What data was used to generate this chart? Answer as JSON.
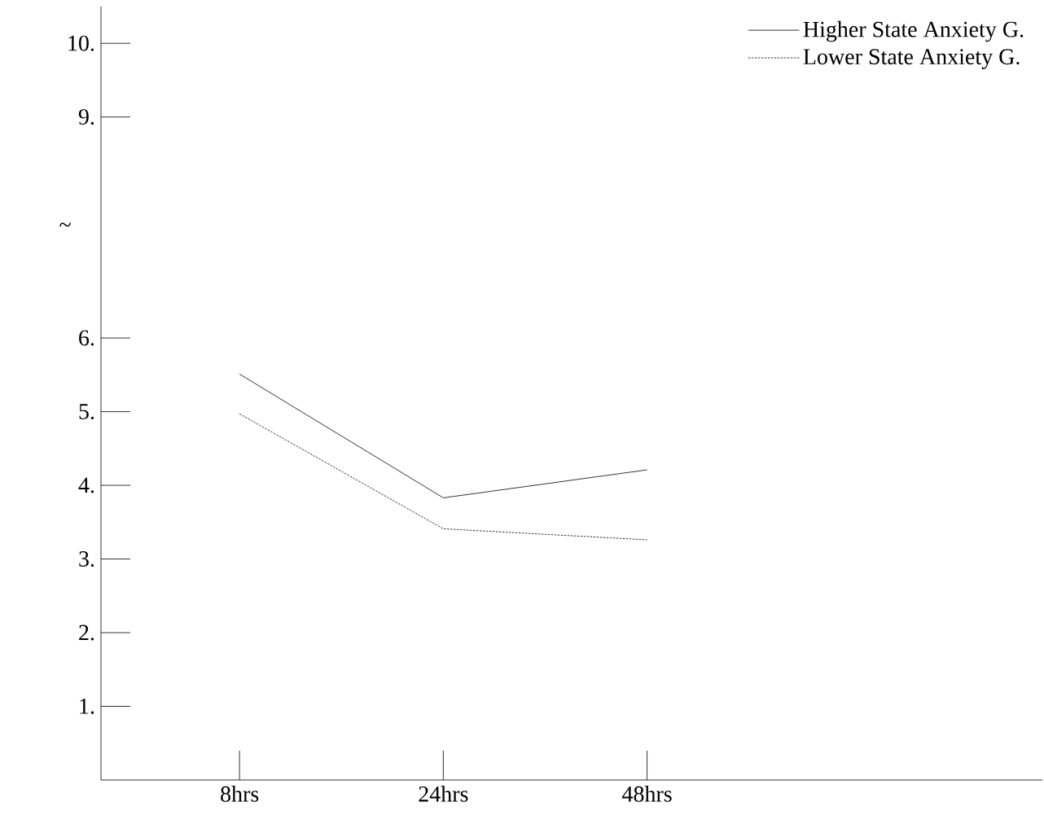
{
  "chart_data": {
    "type": "line",
    "categories": [
      "8hrs",
      "24hrs",
      "48hrs"
    ],
    "series": [
      {
        "name": "Higher State Anxiety G.",
        "color": "#000000",
        "line_style": "solid",
        "values": [
          5.51,
          3.83,
          4.21
        ]
      },
      {
        "name": "Lower State Anxiety G.",
        "color": "#000000",
        "line_style": "dotted",
        "values": [
          4.97,
          3.41,
          3.26
        ]
      }
    ],
    "ylim": [
      0,
      10.5
    ],
    "yticks": [
      {
        "value": 1,
        "label": "1."
      },
      {
        "value": 2,
        "label": "2."
      },
      {
        "value": 3,
        "label": "3."
      },
      {
        "value": 4,
        "label": "4."
      },
      {
        "value": 5,
        "label": "5."
      },
      {
        "value": 6,
        "label": "6."
      },
      {
        "value": 9,
        "label": "9."
      },
      {
        "value": 10,
        "label": "10."
      }
    ],
    "annotations": [
      "~"
    ],
    "legend": "top right",
    "marker": "none",
    "grid": false
  }
}
